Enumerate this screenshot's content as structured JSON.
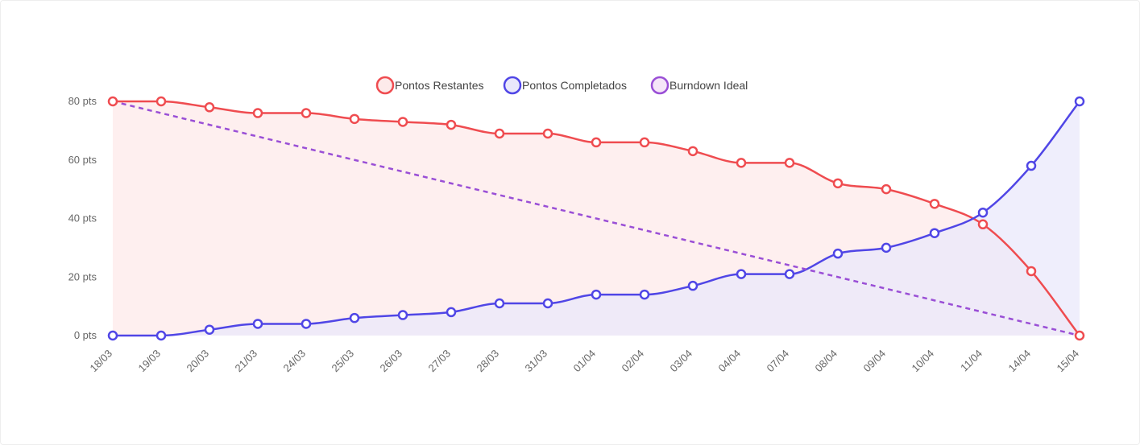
{
  "chart_data": {
    "type": "line",
    "categories": [
      "18/03",
      "19/03",
      "20/03",
      "21/03",
      "24/03",
      "25/03",
      "26/03",
      "27/03",
      "28/03",
      "31/03",
      "01/04",
      "02/04",
      "03/04",
      "04/04",
      "07/04",
      "08/04",
      "09/04",
      "10/04",
      "11/04",
      "14/04",
      "15/04"
    ],
    "series": [
      {
        "name": "Pontos Restantes",
        "color": "#ef4c50",
        "fill": "#fdeaea",
        "style": "solid",
        "marker": "circle",
        "values": [
          80,
          80,
          78,
          76,
          76,
          74,
          73,
          72,
          69,
          69,
          66,
          66,
          63,
          59,
          59,
          52,
          50,
          45,
          38,
          22,
          0
        ]
      },
      {
        "name": "Pontos Completados",
        "color": "#5046e6",
        "fill": "#e9e8fb",
        "style": "solid",
        "marker": "circle",
        "values": [
          0,
          0,
          2,
          4,
          4,
          6,
          7,
          8,
          11,
          11,
          14,
          14,
          17,
          21,
          21,
          28,
          30,
          35,
          42,
          58,
          80
        ]
      },
      {
        "name": "Burndown Ideal",
        "color": "#9a4fd6",
        "fill": "#f5e6f8",
        "style": "dashed",
        "marker": "none",
        "values": [
          80,
          76,
          72,
          68,
          64,
          60,
          56,
          52,
          48,
          44,
          40,
          36,
          32,
          28,
          24,
          20,
          16,
          12,
          8,
          4,
          0
        ]
      }
    ],
    "y_ticks": [
      "0 pts",
      "20 pts",
      "40 pts",
      "60 pts",
      "80 pts"
    ],
    "ylim": [
      0,
      80
    ],
    "legend_position": "top-center",
    "grid": false
  }
}
